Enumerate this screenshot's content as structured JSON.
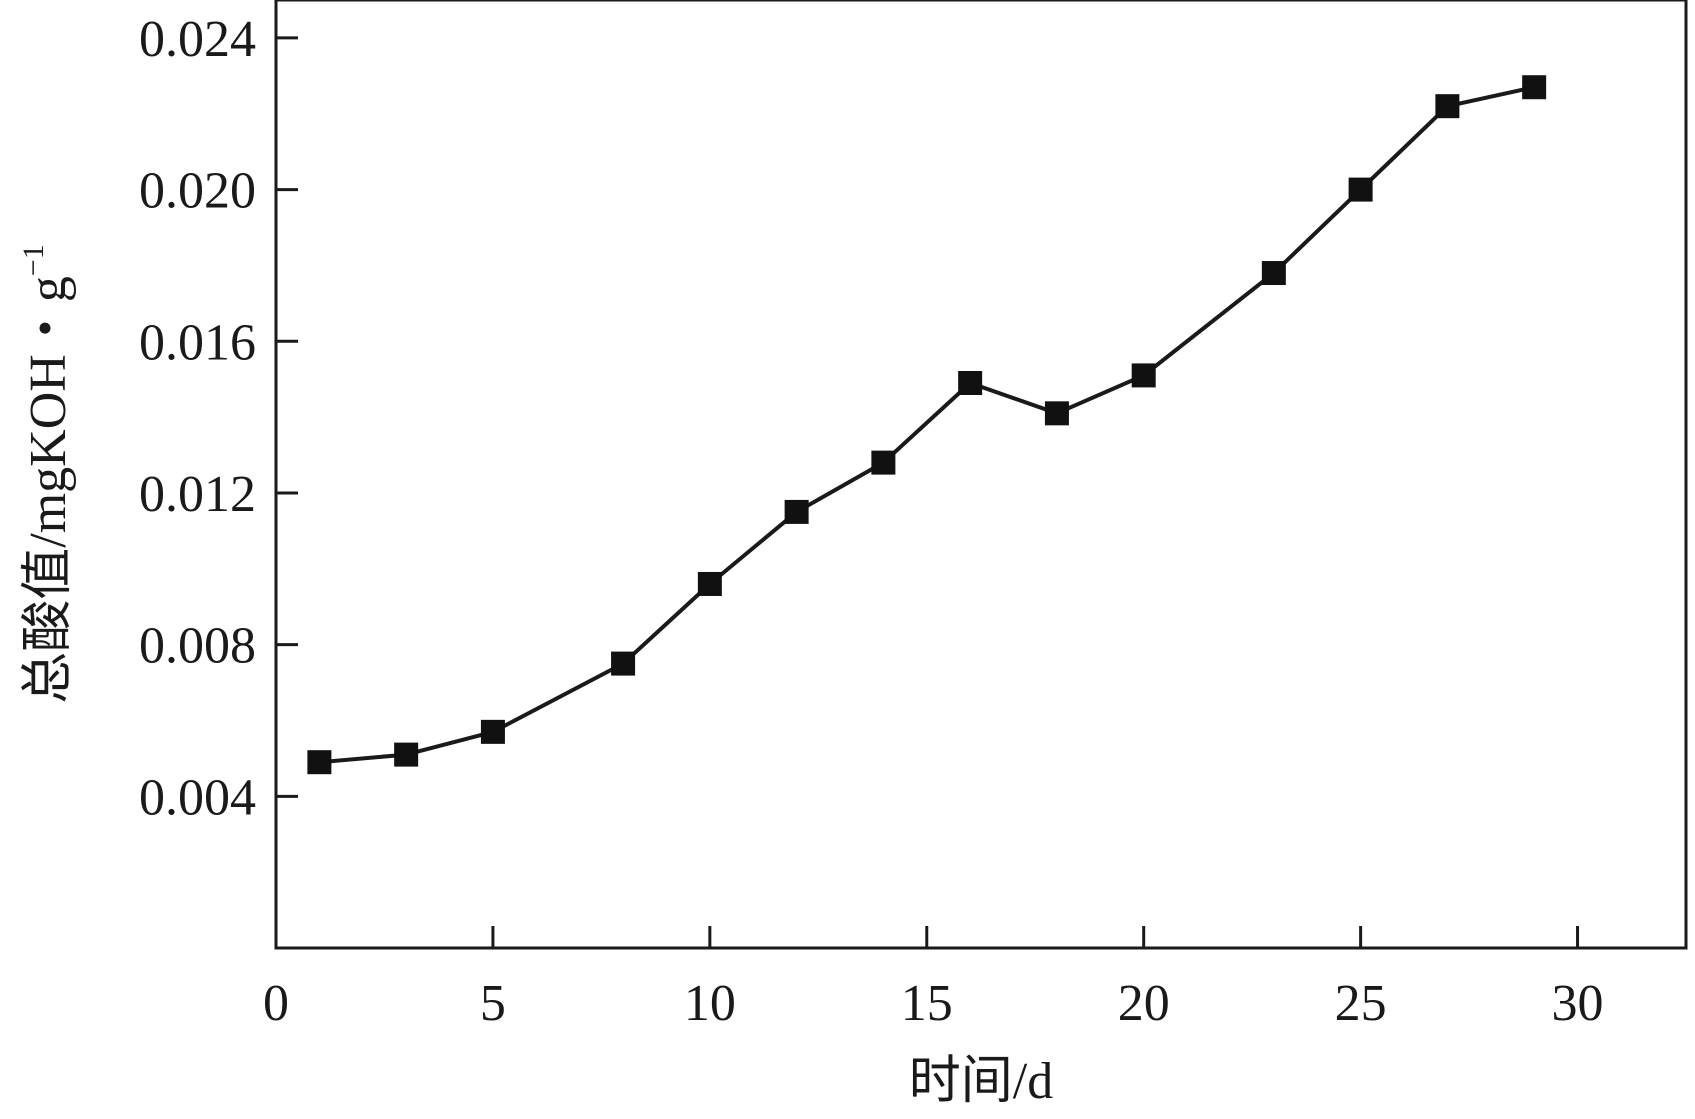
{
  "chart_data": {
    "type": "line",
    "xlabel": "时间/d",
    "ylabel": "总酸值/mgKOH・g",
    "ylabel_superscript": "−1",
    "xlim": [
      0,
      32.5
    ],
    "ylim": [
      0,
      0.025
    ],
    "x_ticks": [
      0,
      5,
      10,
      15,
      20,
      25,
      30
    ],
    "x_tick_labels": [
      "0",
      "5",
      "10",
      "15",
      "20",
      "25",
      "30"
    ],
    "y_ticks": [
      0.004,
      0.008,
      0.012,
      0.016,
      0.02,
      0.024
    ],
    "y_tick_labels": [
      "0.004",
      "0.008",
      "0.012",
      "0.016",
      "0.020",
      "0.024"
    ],
    "grid": false,
    "legend": "none",
    "marker": "square",
    "line_color": "#1a1a1a",
    "series": [
      {
        "x": [
          1,
          3,
          5,
          8,
          10,
          12,
          14,
          16,
          18,
          20,
          23,
          25,
          27,
          29
        ],
        "y": [
          0.0049,
          0.0051,
          0.0057,
          0.0075,
          0.0096,
          0.0115,
          0.0128,
          0.0149,
          0.0141,
          0.0151,
          0.0178,
          0.02,
          0.0222,
          0.0227
        ]
      }
    ]
  }
}
